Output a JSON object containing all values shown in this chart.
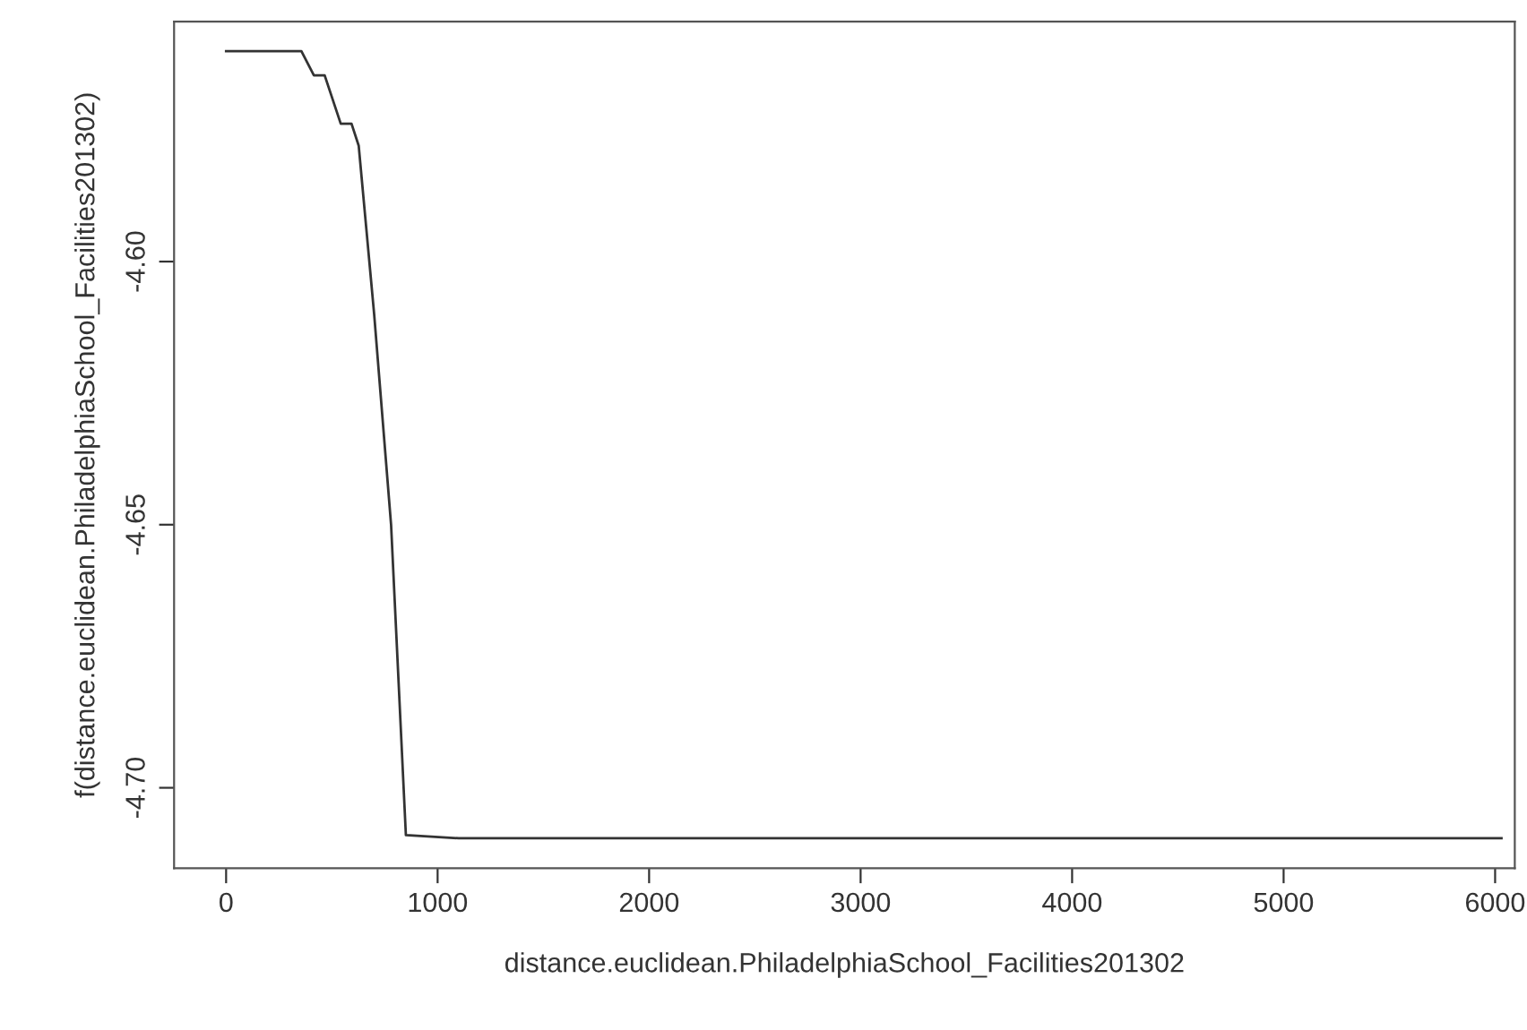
{
  "chart_data": {
    "type": "line",
    "xlabel": "distance.euclidean.PhiladelphiaSchool_Facilities201302",
    "ylabel": "f(distance.euclidean.PhiladelphiaSchool_Facilities201302)",
    "series": [
      {
        "color": "#333333",
        "x": [
          0,
          356,
          415,
          466,
          542,
          593,
          627,
          700,
          780,
          850,
          1100,
          2000,
          3000,
          4000,
          5000,
          6030
        ],
        "values": [
          -4.56,
          -4.56,
          -4.5646,
          -4.5646,
          -4.5738,
          -4.5738,
          -4.578,
          -4.61,
          -4.65,
          -4.709,
          -4.7096,
          -4.7096,
          -4.7096,
          -4.7096,
          -4.7096,
          -4.7096
        ]
      }
    ],
    "xlim": [
      -246,
      6093
    ],
    "ylim": [
      -4.7153,
      -4.5544
    ],
    "xticks": [
      0,
      1000,
      2000,
      3000,
      4000,
      5000,
      6000
    ],
    "yticks": [
      {
        "value": -4.6,
        "label": "-4.60"
      },
      -4.65,
      {
        "value": -4.7,
        "label": "-4.70"
      }
    ],
    "grid": false,
    "legend": false,
    "marker": "none",
    "line_style": "solid"
  }
}
